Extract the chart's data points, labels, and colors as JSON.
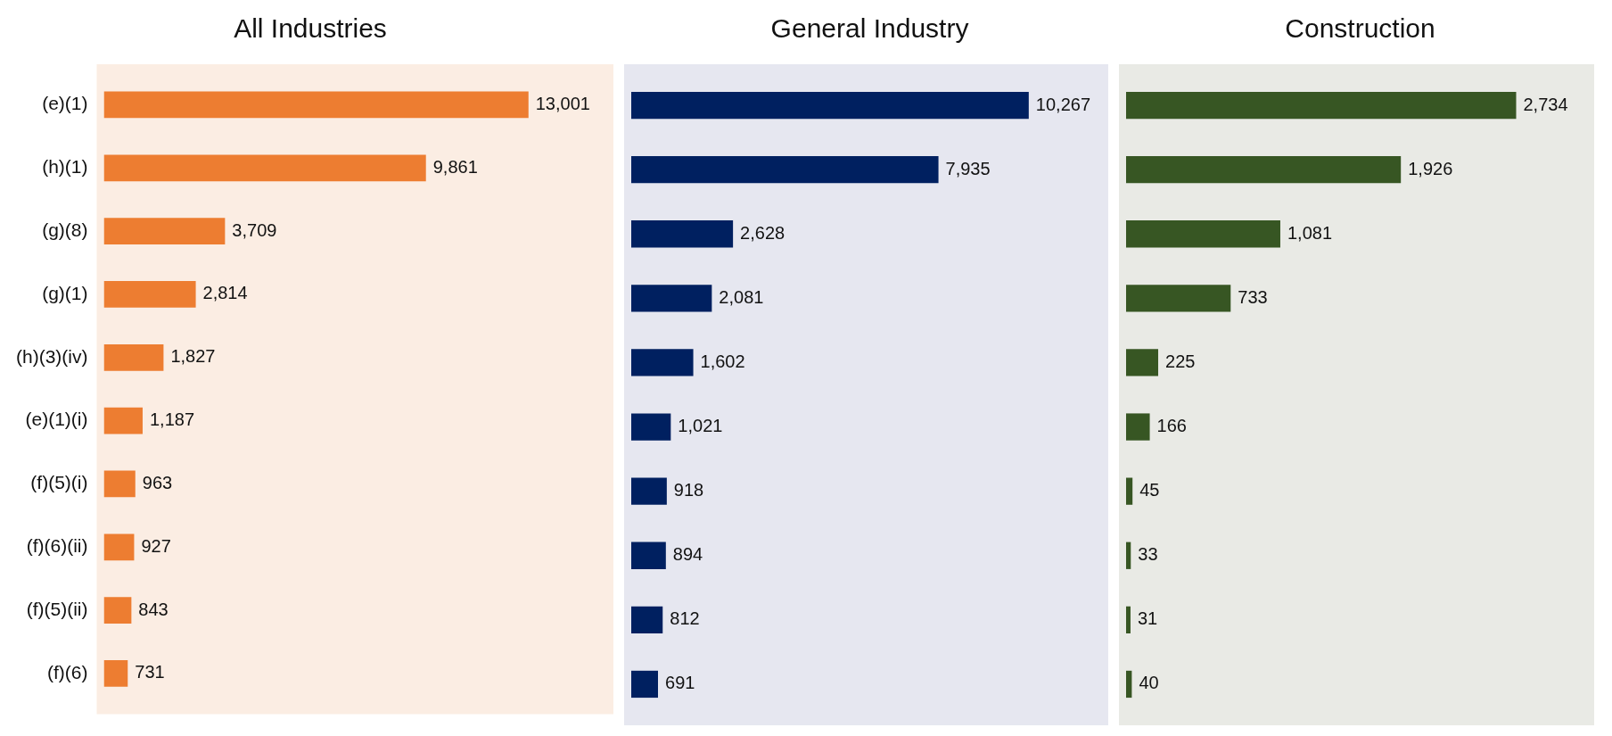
{
  "chart_data": [
    {
      "type": "bar",
      "orientation": "horizontal",
      "title": "All Industries",
      "categories": [
        "(e)(1)",
        "(h)(1)",
        "(g)(8)",
        "(g)(1)",
        "(h)(3)(iv)",
        "(e)(1)(i)",
        "(f)(5)(i)",
        "(f)(6)(ii)",
        "(f)(5)(ii)",
        "(f)(6)"
      ],
      "values": [
        13001,
        9861,
        3709,
        2814,
        1827,
        1187,
        963,
        927,
        843,
        731
      ],
      "value_labels": [
        "13,001",
        "9,861",
        "3,709",
        "2,814",
        "1,827",
        "1,187",
        "963",
        "927",
        "843",
        "731"
      ],
      "color": "#ed7d31",
      "legend": false,
      "tick_labels": "y"
    },
    {
      "type": "bar",
      "orientation": "horizontal",
      "title": "General Industry",
      "categories": [
        null,
        null,
        null,
        null,
        null,
        null,
        null,
        null,
        null,
        null
      ],
      "values": [
        10267,
        7935,
        2628,
        2081,
        1602,
        1021,
        918,
        894,
        812,
        691
      ],
      "value_labels": [
        "10,267",
        "7,935",
        "2,628",
        "2,081",
        "1,602",
        "1,021",
        "918",
        "894",
        "812",
        "691"
      ],
      "color": "#002060",
      "legend": false,
      "tick_labels": false
    },
    {
      "type": "bar",
      "orientation": "horizontal",
      "title": "Construction",
      "categories": [
        null,
        null,
        null,
        null,
        null,
        null,
        null,
        null,
        null,
        null
      ],
      "values": [
        2734,
        1926,
        1081,
        733,
        225,
        166,
        45,
        33,
        31,
        40
      ],
      "value_labels": [
        "2,734",
        "1,926",
        "1,081",
        "733",
        "225",
        "166",
        "45",
        "33",
        "31",
        "40"
      ],
      "color": "#375623",
      "legend": false,
      "tick_labels": false
    }
  ]
}
